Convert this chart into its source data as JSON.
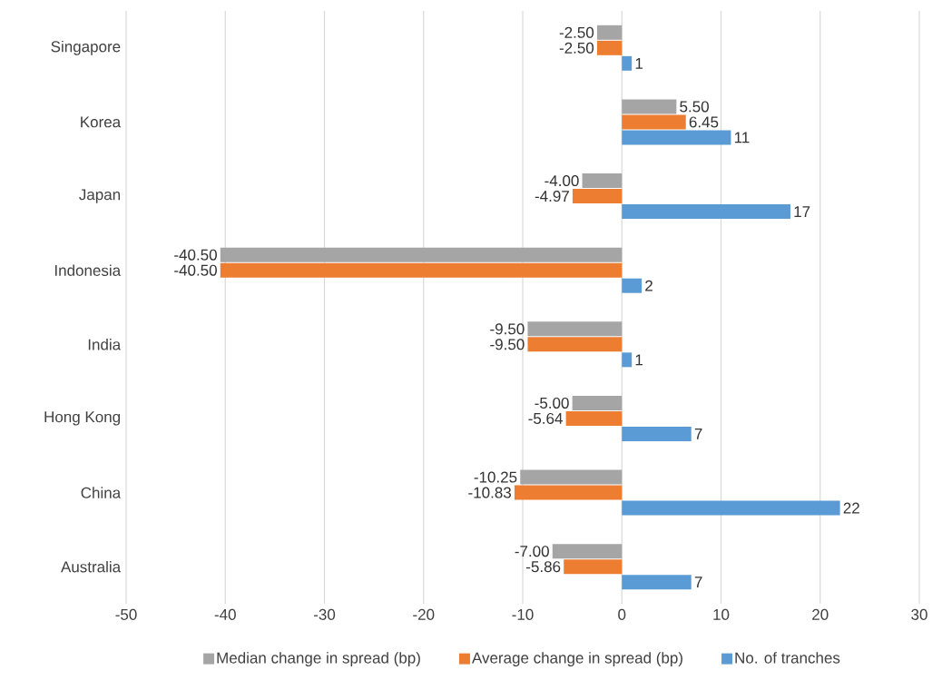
{
  "chart_data": {
    "type": "bar",
    "orientation": "horizontal",
    "categories": [
      "Singapore",
      "Korea",
      "Japan",
      "Indonesia",
      "India",
      "Hong Kong",
      "China",
      "Australia"
    ],
    "series": [
      {
        "name": "Median change in spread (bp)",
        "color": "#a5a5a5",
        "values": [
          -2.5,
          5.5,
          -4,
          -40.5,
          -9.5,
          -5,
          -10.25,
          -7
        ],
        "value_labels": [
          "-2.50",
          "5.50",
          "-4.00",
          "-40.50",
          "-9.50",
          "-5.00",
          "-10.25",
          "-7.00"
        ]
      },
      {
        "name": "Average change in spread (bp)",
        "color": "#ed7d31",
        "values": [
          -2.5,
          6.45,
          -4.97,
          -40.5,
          -9.5,
          -5.64,
          -10.83,
          -5.86
        ],
        "value_labels": [
          "-2.50",
          "6.45",
          "-4.97",
          "-40.50",
          "-9.50",
          "-5.64",
          "-10.83",
          "-5.86"
        ]
      },
      {
        "name": "No. of tranches",
        "color": "#5b9bd5",
        "values": [
          1,
          11,
          17,
          2,
          1,
          7,
          22,
          7
        ],
        "value_labels": [
          "1",
          "11",
          "17",
          "2",
          "1",
          "7",
          "22",
          "7"
        ]
      }
    ],
    "xlim": [
      -50,
      30
    ],
    "xticks": [
      -50,
      -40,
      -30,
      -20,
      -10,
      0,
      10,
      20,
      30
    ],
    "grid": "x",
    "legend": "bottom"
  }
}
